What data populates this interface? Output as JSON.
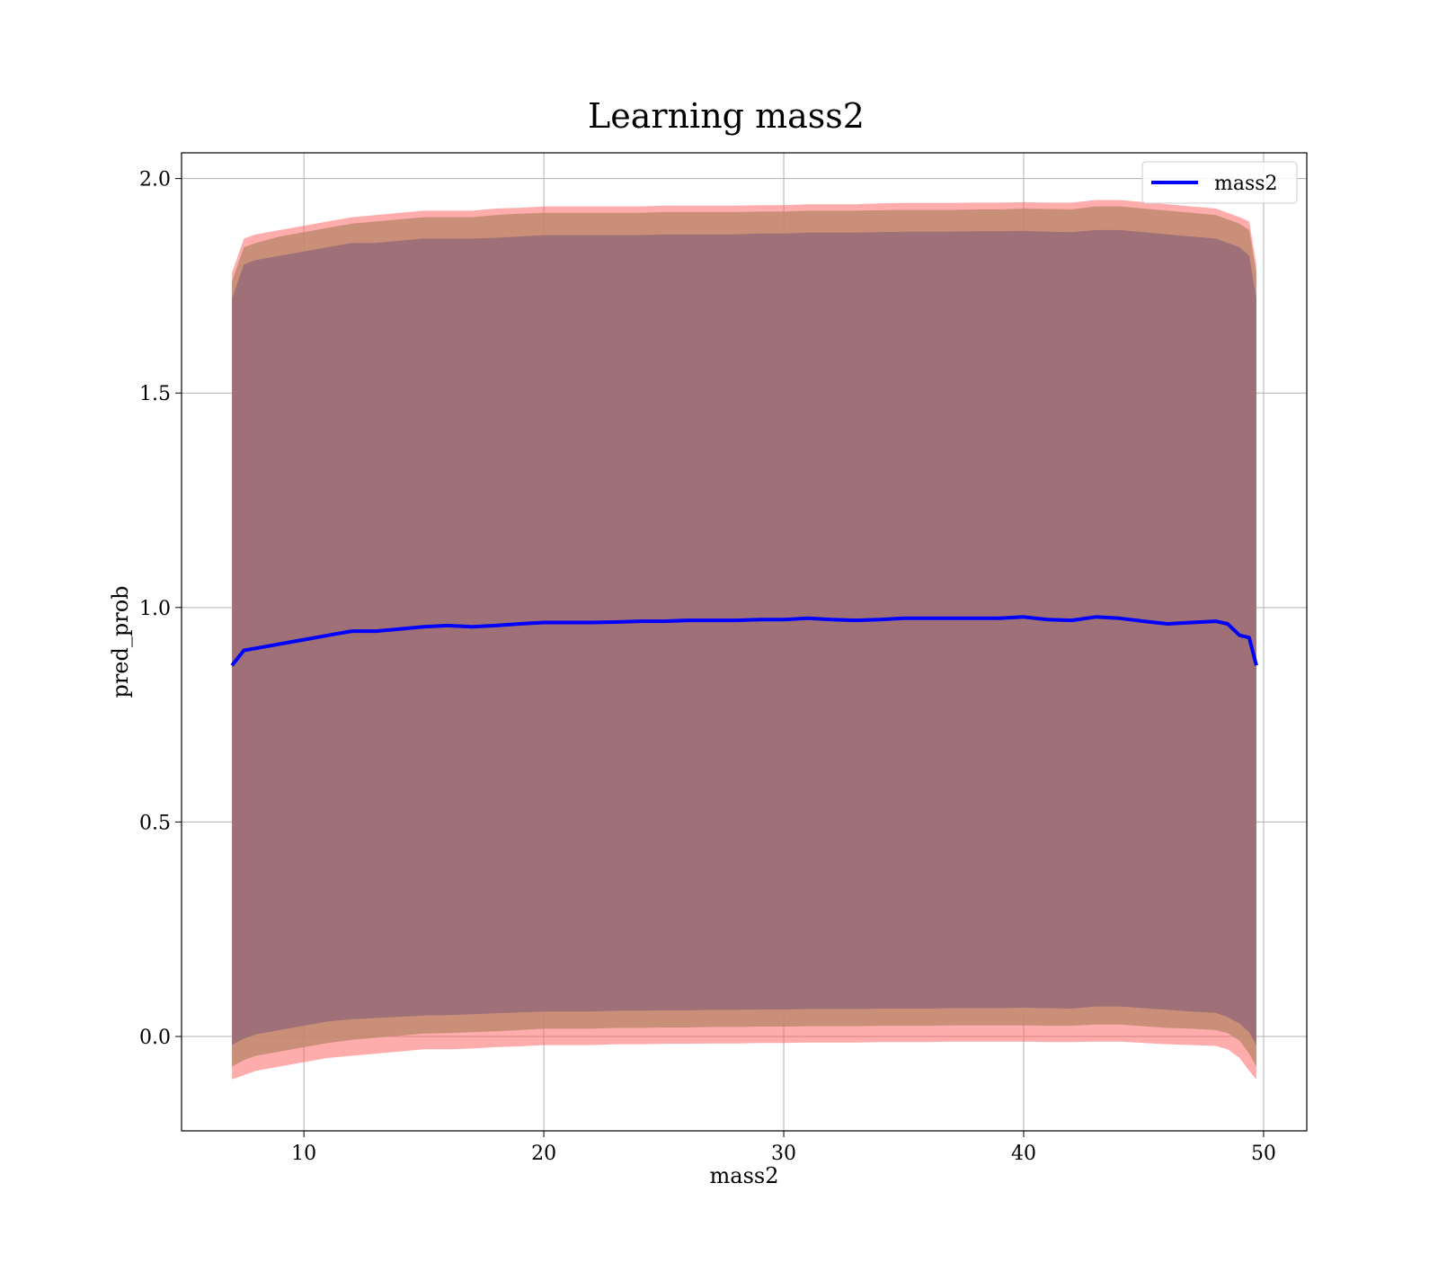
{
  "chart_data": {
    "type": "line",
    "title": "Learning mass2",
    "xlabel": "mass2",
    "ylabel": "pred_prob",
    "xlim": [
      4.9,
      51.8
    ],
    "ylim": [
      -0.22,
      2.06
    ],
    "xticks": [
      10,
      20,
      30,
      40,
      50
    ],
    "xtick_labels": [
      "10",
      "20",
      "30",
      "40",
      "50"
    ],
    "yticks": [
      0.0,
      0.5,
      1.0,
      1.5,
      2.0
    ],
    "ytick_labels": [
      "0.0",
      "0.5",
      "1.0",
      "1.5",
      "2.0"
    ],
    "grid": true,
    "legend_position": "top-right",
    "colors": {
      "line": "#0000ff",
      "outer_band": "#ff5a5a",
      "middle_band": "#c08a6e",
      "inner_band": "#a07078",
      "grid": "#b0b0b0"
    },
    "mean_line": {
      "name": "mass2",
      "x": [
        7.0,
        7.5,
        8,
        9,
        10,
        11,
        12,
        13,
        14,
        15,
        16,
        17,
        18,
        19,
        20,
        21,
        22,
        23,
        24,
        25,
        26,
        27,
        28,
        29,
        30,
        31,
        32,
        33,
        34,
        35,
        36,
        37,
        38,
        39,
        40,
        41,
        42,
        43,
        44,
        45,
        46,
        47,
        48,
        48.5,
        49,
        49.4,
        49.7
      ],
      "y": [
        0.865,
        0.9,
        0.905,
        0.915,
        0.925,
        0.935,
        0.945,
        0.945,
        0.95,
        0.955,
        0.958,
        0.955,
        0.958,
        0.962,
        0.965,
        0.965,
        0.965,
        0.966,
        0.968,
        0.968,
        0.97,
        0.97,
        0.97,
        0.972,
        0.972,
        0.975,
        0.972,
        0.97,
        0.972,
        0.975,
        0.975,
        0.975,
        0.975,
        0.975,
        0.978,
        0.972,
        0.97,
        0.978,
        0.975,
        0.968,
        0.962,
        0.965,
        0.968,
        0.962,
        0.935,
        0.93,
        0.865
      ]
    },
    "bands": [
      {
        "x": [
          7.0,
          7.5,
          8,
          9,
          10,
          11,
          12,
          13,
          14,
          15,
          16,
          17,
          18,
          19,
          20,
          21,
          22,
          23,
          24,
          25,
          26,
          27,
          28,
          29,
          30,
          31,
          32,
          33,
          34,
          35,
          36,
          37,
          38,
          39,
          40,
          41,
          42,
          43,
          44,
          45,
          46,
          47,
          48,
          48.5,
          49,
          49.4,
          49.7
        ],
        "upper": [
          1.78,
          1.86,
          1.87,
          1.88,
          1.89,
          1.9,
          1.91,
          1.915,
          1.92,
          1.925,
          1.925,
          1.925,
          1.93,
          1.932,
          1.935,
          1.935,
          1.935,
          1.935,
          1.935,
          1.937,
          1.937,
          1.937,
          1.937,
          1.938,
          1.938,
          1.94,
          1.94,
          1.94,
          1.942,
          1.943,
          1.943,
          1.943,
          1.944,
          1.944,
          1.945,
          1.944,
          1.944,
          1.95,
          1.95,
          1.945,
          1.94,
          1.935,
          1.93,
          1.92,
          1.91,
          1.9,
          1.8
        ],
        "lower": [
          -0.1,
          -0.09,
          -0.08,
          -0.07,
          -0.06,
          -0.05,
          -0.045,
          -0.04,
          -0.035,
          -0.03,
          -0.03,
          -0.028,
          -0.025,
          -0.023,
          -0.02,
          -0.02,
          -0.02,
          -0.018,
          -0.018,
          -0.017,
          -0.017,
          -0.016,
          -0.016,
          -0.015,
          -0.015,
          -0.014,
          -0.014,
          -0.014,
          -0.013,
          -0.013,
          -0.013,
          -0.012,
          -0.012,
          -0.012,
          -0.012,
          -0.013,
          -0.013,
          -0.012,
          -0.012,
          -0.015,
          -0.018,
          -0.02,
          -0.022,
          -0.03,
          -0.05,
          -0.08,
          -0.1
        ]
      },
      {
        "x": [
          7.0,
          7.5,
          8,
          9,
          10,
          11,
          12,
          13,
          14,
          15,
          16,
          17,
          18,
          19,
          20,
          21,
          22,
          23,
          24,
          25,
          26,
          27,
          28,
          29,
          30,
          31,
          32,
          33,
          34,
          35,
          36,
          37,
          38,
          39,
          40,
          41,
          42,
          43,
          44,
          45,
          46,
          47,
          48,
          48.5,
          49,
          49.4,
          49.7
        ],
        "upper": [
          1.76,
          1.84,
          1.85,
          1.865,
          1.875,
          1.885,
          1.895,
          1.9,
          1.905,
          1.91,
          1.91,
          1.91,
          1.915,
          1.918,
          1.92,
          1.92,
          1.92,
          1.92,
          1.92,
          1.922,
          1.922,
          1.922,
          1.922,
          1.923,
          1.923,
          1.925,
          1.925,
          1.925,
          1.926,
          1.927,
          1.927,
          1.927,
          1.928,
          1.928,
          1.93,
          1.929,
          1.928,
          1.935,
          1.935,
          1.93,
          1.925,
          1.92,
          1.915,
          1.905,
          1.895,
          1.88,
          1.78
        ],
        "lower": [
          -0.07,
          -0.055,
          -0.045,
          -0.035,
          -0.025,
          -0.015,
          -0.008,
          -0.003,
          0.002,
          0.007,
          0.008,
          0.01,
          0.012,
          0.015,
          0.018,
          0.018,
          0.018,
          0.02,
          0.02,
          0.021,
          0.021,
          0.022,
          0.022,
          0.023,
          0.023,
          0.024,
          0.024,
          0.024,
          0.025,
          0.025,
          0.025,
          0.026,
          0.026,
          0.026,
          0.026,
          0.025,
          0.025,
          0.028,
          0.028,
          0.024,
          0.02,
          0.018,
          0.015,
          0.008,
          -0.01,
          -0.04,
          -0.07
        ]
      },
      {
        "x": [
          7.0,
          7.5,
          8,
          9,
          10,
          11,
          12,
          13,
          14,
          15,
          16,
          17,
          18,
          19,
          20,
          21,
          22,
          23,
          24,
          25,
          26,
          27,
          28,
          29,
          30,
          31,
          32,
          33,
          34,
          35,
          36,
          37,
          38,
          39,
          40,
          41,
          42,
          43,
          44,
          45,
          46,
          47,
          48,
          48.5,
          49,
          49.4,
          49.7
        ],
        "upper": [
          1.72,
          1.8,
          1.81,
          1.82,
          1.83,
          1.84,
          1.85,
          1.85,
          1.855,
          1.86,
          1.86,
          1.86,
          1.862,
          1.865,
          1.868,
          1.868,
          1.868,
          1.868,
          1.868,
          1.87,
          1.87,
          1.87,
          1.87,
          1.872,
          1.872,
          1.874,
          1.874,
          1.874,
          1.875,
          1.876,
          1.876,
          1.876,
          1.877,
          1.877,
          1.878,
          1.876,
          1.875,
          1.88,
          1.88,
          1.875,
          1.87,
          1.865,
          1.86,
          1.85,
          1.84,
          1.82,
          1.72
        ],
        "lower": [
          -0.02,
          -0.005,
          0.005,
          0.015,
          0.025,
          0.035,
          0.04,
          0.043,
          0.046,
          0.049,
          0.05,
          0.052,
          0.054,
          0.056,
          0.058,
          0.058,
          0.058,
          0.06,
          0.06,
          0.061,
          0.061,
          0.062,
          0.062,
          0.063,
          0.063,
          0.064,
          0.064,
          0.064,
          0.065,
          0.065,
          0.065,
          0.066,
          0.066,
          0.066,
          0.067,
          0.066,
          0.065,
          0.07,
          0.07,
          0.066,
          0.062,
          0.058,
          0.055,
          0.045,
          0.03,
          0.01,
          -0.02
        ]
      }
    ],
    "legend": {
      "entries": [
        "mass2"
      ]
    }
  }
}
